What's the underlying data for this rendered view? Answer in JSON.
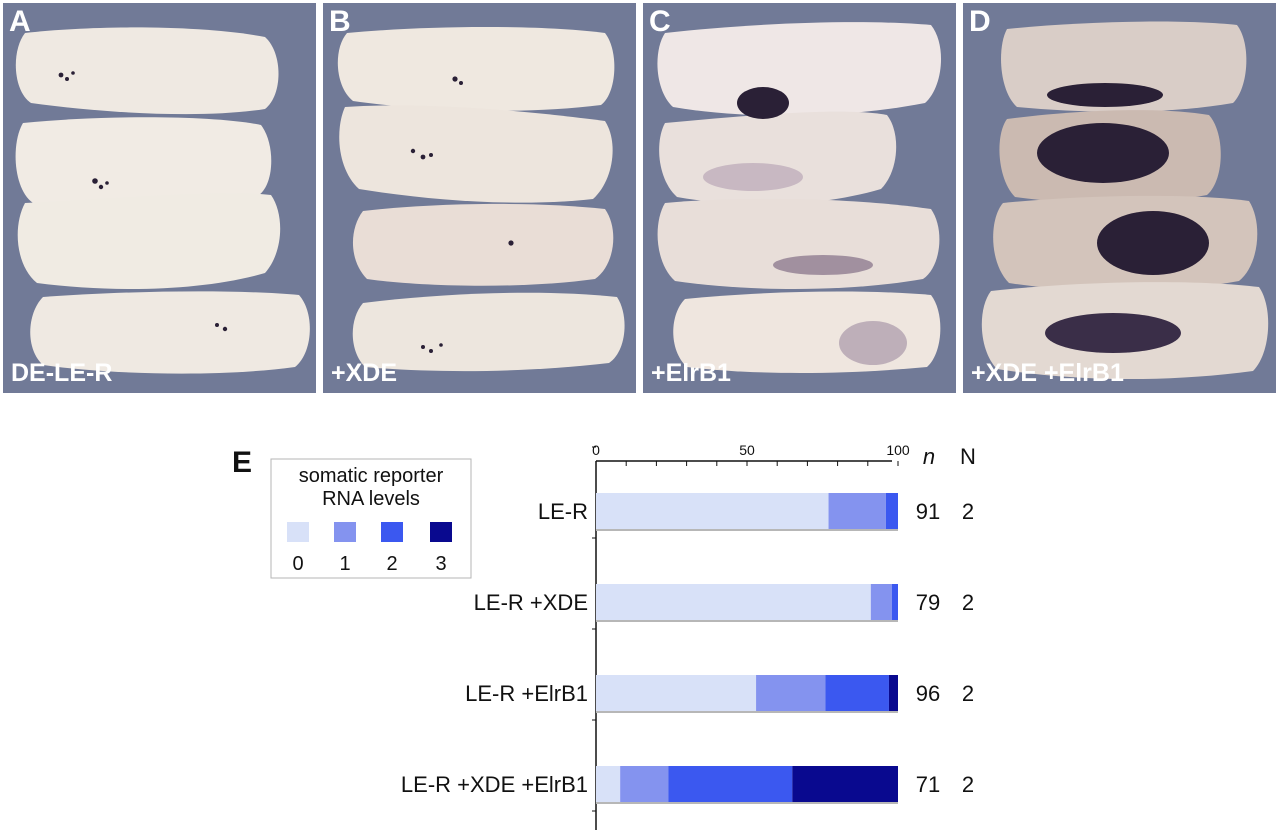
{
  "panels": [
    {
      "letter": "A",
      "caption": "DE-LE-R"
    },
    {
      "letter": "B",
      "caption": "+XDE"
    },
    {
      "letter": "C",
      "caption": "+ElrB1"
    },
    {
      "letter": "D",
      "caption": "+XDE +ElrB1"
    }
  ],
  "colors": {
    "panel_background": "#717a97",
    "embryo": "#efe9e2",
    "stain": "#2a2036"
  },
  "chart_data": {
    "type": "bar",
    "orientation": "horizontal",
    "stacked": true,
    "panel_letter": "E",
    "categories": [
      "LE-R",
      "LE-R +XDE",
      "LE-R +ElrB1",
      "LE-R +XDE +ElrB1"
    ],
    "series": [
      {
        "name": "0",
        "color": "#d8e1f8",
        "values": [
          77,
          91,
          53,
          8
        ]
      },
      {
        "name": "1",
        "color": "#8493ef",
        "values": [
          19,
          7,
          23,
          16
        ]
      },
      {
        "name": "2",
        "color": "#3b58f0",
        "values": [
          4,
          2,
          21,
          41
        ]
      },
      {
        "name": "3",
        "color": "#09098f",
        "values": [
          0,
          0,
          3,
          35
        ]
      }
    ],
    "xlim": [
      0,
      100
    ],
    "xticks": [
      "0",
      "50",
      "100"
    ],
    "legend": {
      "title_line1": "somatic reporter",
      "title_line2": "RNA levels",
      "placement": "top-left"
    },
    "n_header": "n",
    "N_header": "N",
    "n_values": [
      "91",
      "79",
      "96",
      "71"
    ],
    "N_values": [
      "2",
      "2",
      "2",
      "2"
    ]
  }
}
